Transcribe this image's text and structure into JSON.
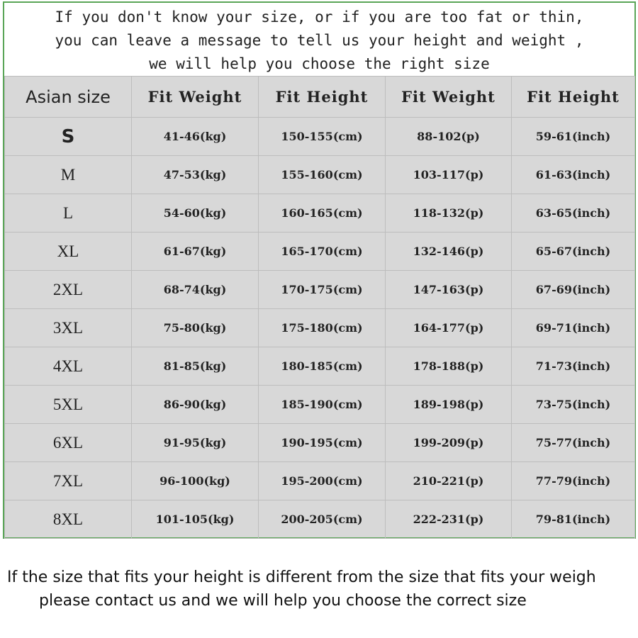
{
  "intro": [
    "If you don't know your size, or if you are too fat or thin,",
    "you can leave a message to tell us your height and weight ,",
    "we will help you choose the right size"
  ],
  "table": {
    "headers": [
      "Asian size",
      "Fit Weight",
      "Fit Height",
      "Fit Weight",
      "Fit Height"
    ],
    "rows": [
      [
        "S",
        "41-46(kg)",
        "150-155(cm)",
        "88-102(p)",
        "59-61(inch)"
      ],
      [
        "M",
        "47-53(kg)",
        "155-160(cm)",
        "103-117(p)",
        "61-63(inch)"
      ],
      [
        "L",
        "54-60(kg)",
        "160-165(cm)",
        "118-132(p)",
        "63-65(inch)"
      ],
      [
        "XL",
        "61-67(kg)",
        "165-170(cm)",
        "132-146(p)",
        "65-67(inch)"
      ],
      [
        "2XL",
        "68-74(kg)",
        "170-175(cm)",
        "147-163(p)",
        "67-69(inch)"
      ],
      [
        "3XL",
        "75-80(kg)",
        "175-180(cm)",
        "164-177(p)",
        "69-71(inch)"
      ],
      [
        "4XL",
        "81-85(kg)",
        "180-185(cm)",
        "178-188(p)",
        "71-73(inch)"
      ],
      [
        "5XL",
        "86-90(kg)",
        "185-190(cm)",
        "189-198(p)",
        "73-75(inch)"
      ],
      [
        "6XL",
        "91-95(kg)",
        "190-195(cm)",
        "199-209(p)",
        "75-77(inch)"
      ],
      [
        "7XL",
        "96-100(kg)",
        "195-200(cm)",
        "210-221(p)",
        "77-79(inch)"
      ],
      [
        "8XL",
        "101-105(kg)",
        "200-205(cm)",
        "222-231(p)",
        "79-81(inch)"
      ]
    ]
  },
  "note": [
    "If the size that fits your height is different from the size that fits your weigh",
    "please contact us and we will help you choose the correct size"
  ],
  "colors": {
    "border": "#5aa557",
    "table_bg": "#d8d8d8"
  }
}
